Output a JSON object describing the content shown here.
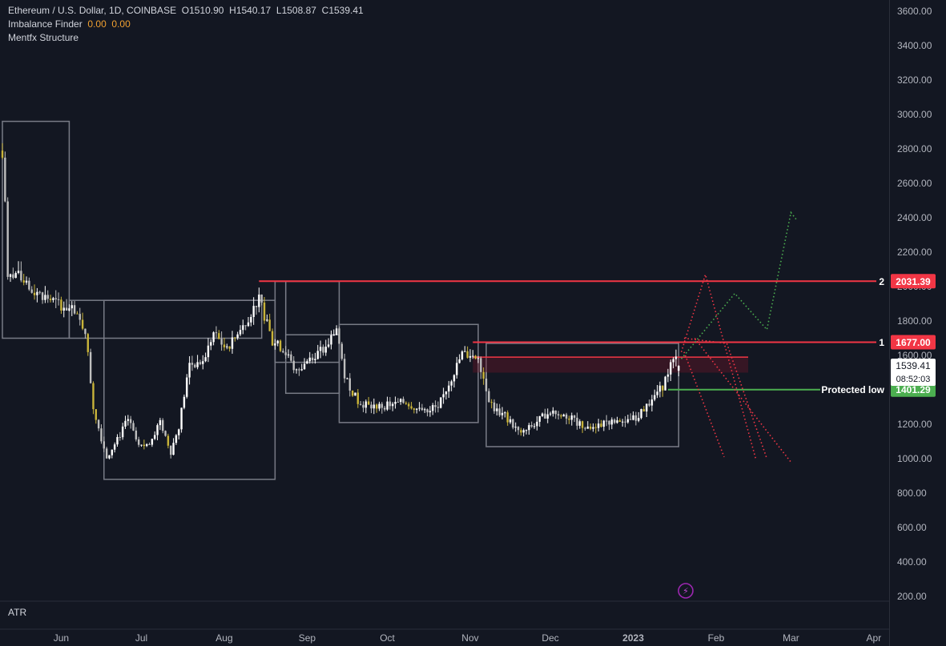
{
  "header": {
    "symbol": "Ethereum / U.S. Dollar, 1D, COINBASE",
    "o_label": "O",
    "o": "1510.90",
    "h_label": "H",
    "h": "1540.17",
    "l_label": "L",
    "l": "1508.87",
    "c_label": "C",
    "c": "1539.41",
    "ind1_name": "Imbalance Finder",
    "ind1_v1": "0.00",
    "ind1_v2": "0.00",
    "ind2_name": "Mentfx Structure"
  },
  "atr_label": "ATR",
  "colors": {
    "background": "#131722",
    "bull": "#ffffff",
    "bear": "#bfbfbf",
    "bear_alt": "#c9b43a",
    "resistance": "#f23645",
    "support": "#4caf50",
    "structure_box": "#787b86",
    "projection_red": "#f23645",
    "projection_green": "#4caf50"
  },
  "chart_data": {
    "type": "candlestick",
    "symbol": "ETHUSD",
    "interval": "1D",
    "yaxis_ticks": [
      "3600.00",
      "3400.00",
      "3200.00",
      "3000.00",
      "2800.00",
      "2600.00",
      "2400.00",
      "2200.00",
      "2000.00",
      "1800.00",
      "1600.00",
      "1400.00",
      "1200.00",
      "1000.00",
      "800.00",
      "600.00",
      "400.00",
      "200.00"
    ],
    "ylim": [
      200,
      3600
    ],
    "xaxis_ticks": [
      "Jun",
      "Jul",
      "Aug",
      "Sep",
      "Oct",
      "Nov",
      "Dec",
      "2023",
      "Feb",
      "Mar",
      "Apr"
    ],
    "close_path": [
      [
        "May 10",
        2750
      ],
      [
        "May 11",
        2500
      ],
      [
        "May 12",
        2050
      ],
      [
        "May 15",
        2080
      ],
      [
        "May 20",
        1980
      ],
      [
        "May 25",
        1950
      ],
      [
        "May 31",
        1900
      ],
      [
        "Jun 5",
        1860
      ],
      [
        "Jun 10",
        1750
      ],
      [
        "Jun 13",
        1300
      ],
      [
        "Jun 16",
        1120
      ],
      [
        "Jun 18",
        1010
      ],
      [
        "Jun 22",
        1110
      ],
      [
        "Jun 26",
        1230
      ],
      [
        "Jun 30",
        1070
      ],
      [
        "Jul 4",
        1080
      ],
      [
        "Jul 8",
        1220
      ],
      [
        "Jul 12",
        1040
      ],
      [
        "Jul 15",
        1190
      ],
      [
        "Jul 19",
        1550
      ],
      [
        "Jul 24",
        1560
      ],
      [
        "Jul 28",
        1730
      ],
      [
        "Aug 2",
        1630
      ],
      [
        "Aug 8",
        1770
      ],
      [
        "Aug 14",
        1930
      ],
      [
        "Aug 19",
        1680
      ],
      [
        "Aug 23",
        1640
      ],
      [
        "Aug 28",
        1500
      ],
      [
        "Sep 2",
        1590
      ],
      [
        "Sep 8",
        1640
      ],
      [
        "Sep 12",
        1760
      ],
      [
        "Sep 15",
        1480
      ],
      [
        "Sep 20",
        1330
      ],
      [
        "Sep 25",
        1300
      ],
      [
        "Oct 1",
        1310
      ],
      [
        "Oct 8",
        1330
      ],
      [
        "Oct 13",
        1280
      ],
      [
        "Oct 20",
        1300
      ],
      [
        "Oct 25",
        1470
      ],
      [
        "Oct 29",
        1610
      ],
      [
        "Nov 4",
        1590
      ],
      [
        "Nov 8",
        1350
      ],
      [
        "Nov 10",
        1290
      ],
      [
        "Nov 14",
        1250
      ],
      [
        "Nov 20",
        1140
      ],
      [
        "Nov 24",
        1190
      ],
      [
        "Dec 1",
        1280
      ],
      [
        "Dec 8",
        1240
      ],
      [
        "Dec 15",
        1170
      ],
      [
        "Dec 22",
        1220
      ],
      [
        "Dec 28",
        1200
      ],
      [
        "Jan 3",
        1250
      ],
      [
        "Jan 8",
        1350
      ],
      [
        "Jan 12",
        1420
      ],
      [
        "Jan 15",
        1550
      ],
      [
        "Jan 17",
        1580
      ],
      [
        "Jan 18",
        1539.41
      ]
    ],
    "price_labels": [
      {
        "text": "2031.39",
        "color": "#f23645",
        "price": 2031.39,
        "tag": "2"
      },
      {
        "text": "1677.00",
        "color": "#f23645",
        "price": 1677.0,
        "tag": "1"
      },
      {
        "text": "1401.29",
        "color": "#4caf50",
        "price": 1401.29,
        "tag": "Protected low"
      }
    ],
    "current_price": {
      "value": "1539.41",
      "countdown": "08:52:03",
      "price": 1539.41
    },
    "structure_boxes": [
      {
        "x1": "May 10",
        "x2": "Jun 4",
        "y1": 1700,
        "y2": 2960
      },
      {
        "x1": "Jun 4",
        "x2": "Aug 15",
        "y1": 1700,
        "y2": 1920
      },
      {
        "x1": "Jun 17",
        "x2": "Aug 20",
        "y1": 880,
        "y2": 1920
      },
      {
        "x1": "Aug 20",
        "x2": "Aug 24",
        "y1": 1560,
        "y2": 2030
      },
      {
        "x1": "Aug 24",
        "x2": "Sep 13",
        "y1": 1560,
        "y2": 2030
      },
      {
        "x1": "Aug 24",
        "x2": "Sep 13",
        "y1": 1380,
        "y2": 1720
      },
      {
        "x1": "Sep 13",
        "x2": "Nov 4",
        "y1": 1210,
        "y2": 1780
      },
      {
        "x1": "Nov 7",
        "x2": "Jan 18",
        "y1": 1070,
        "y2": 1670
      }
    ],
    "resistance_lines": [
      {
        "price": 2031.39,
        "from": "Aug 14"
      },
      {
        "price": 1677.0,
        "from": "Nov 2"
      }
    ],
    "support_line": {
      "price": 1401.29,
      "from": "Jan 14"
    },
    "imbalance_zone": {
      "from": "Nov 2",
      "to": "Feb 13",
      "y1": 1500,
      "y2": 1590
    },
    "projections": {
      "green": [
        [
          "Jan 19",
          1580
        ],
        [
          "Feb 8",
          1960
        ],
        [
          "Feb 20",
          1750
        ],
        [
          "Mar 1",
          2430
        ],
        [
          "Mar 3",
          2390
        ]
      ],
      "red": [
        [
          [
            "Jan 19",
            1620
          ],
          [
            "Jan 28",
            2070
          ],
          [
            "Feb 16",
            990
          ]
        ],
        [
          [
            "Jan 20",
            1700
          ],
          [
            "Feb 5",
            1670
          ],
          [
            "Feb 20",
            1000
          ]
        ],
        [
          [
            "Jan 20",
            1620
          ],
          [
            "Feb 4",
            1010
          ]
        ],
        [
          [
            "Jan 24",
            1700
          ],
          [
            "Mar 1",
            980
          ]
        ]
      ]
    }
  },
  "badges": {
    "lightning": "⚡"
  }
}
